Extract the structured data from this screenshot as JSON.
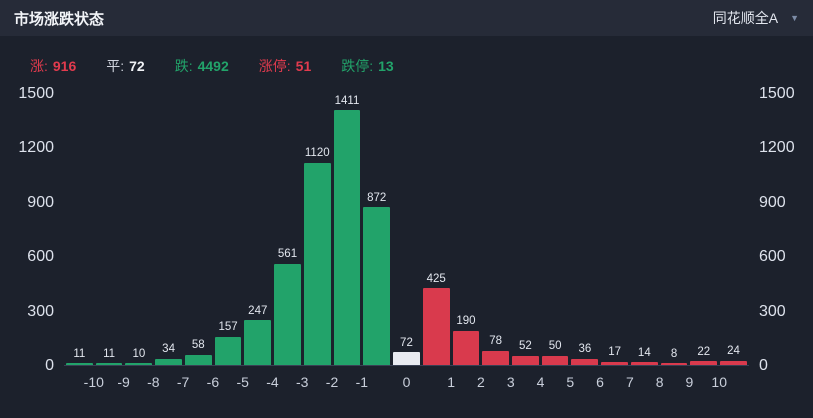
{
  "header": {
    "title": "市场涨跌状态",
    "index_selector_label": "同花顺全A"
  },
  "icons": {
    "dropdown_caret": "▼"
  },
  "colors": {
    "up": "#d93a4d",
    "down": "#22a36a",
    "flat": "#e9ebf1",
    "bg": "#1c212c",
    "header_bg": "#262b38"
  },
  "stats": [
    {
      "key": "up",
      "label": "涨:",
      "value": "916",
      "label_color": "#e23b4e",
      "value_color": "#e23b4e"
    },
    {
      "key": "flat",
      "label": "平:",
      "value": "72",
      "label_color": "#cfd3dd",
      "value_color": "#f0f2f6"
    },
    {
      "key": "down",
      "label": "跌:",
      "value": "4492",
      "label_color": "#22a36a",
      "value_color": "#22a36a"
    },
    {
      "key": "limit_up",
      "label": "涨停:",
      "value": "51",
      "label_color": "#e23b4e",
      "value_color": "#e23b4e"
    },
    {
      "key": "limit_down",
      "label": "跌停:",
      "value": "13",
      "label_color": "#22a36a",
      "value_color": "#22a36a"
    }
  ],
  "chart_data": {
    "type": "bar",
    "title": "市场涨跌状态",
    "xlabel": "",
    "ylabel": "",
    "ylim": [
      0,
      1500
    ],
    "grid": false,
    "legend_position": "none",
    "y_ticks": [
      "0",
      "300",
      "600",
      "900",
      "1200",
      "1500"
    ],
    "x_ticks": [
      "-10",
      "-9",
      "-8",
      "-7",
      "-6",
      "-5",
      "-4",
      "-3",
      "-2",
      "-1",
      "0",
      "1",
      "2",
      "3",
      "4",
      "5",
      "6",
      "7",
      "8",
      "9",
      "10"
    ],
    "bars": [
      {
        "value": 11,
        "type": "down"
      },
      {
        "value": 11,
        "type": "down"
      },
      {
        "value": 10,
        "type": "down"
      },
      {
        "value": 34,
        "type": "down"
      },
      {
        "value": 58,
        "type": "down"
      },
      {
        "value": 157,
        "type": "down"
      },
      {
        "value": 247,
        "type": "down"
      },
      {
        "value": 561,
        "type": "down"
      },
      {
        "value": 1120,
        "type": "down"
      },
      {
        "value": 1411,
        "type": "down"
      },
      {
        "value": 872,
        "type": "down"
      },
      {
        "value": 72,
        "type": "flat"
      },
      {
        "value": 425,
        "type": "up"
      },
      {
        "value": 190,
        "type": "up"
      },
      {
        "value": 78,
        "type": "up"
      },
      {
        "value": 52,
        "type": "up"
      },
      {
        "value": 50,
        "type": "up"
      },
      {
        "value": 36,
        "type": "up"
      },
      {
        "value": 17,
        "type": "up"
      },
      {
        "value": 14,
        "type": "up"
      },
      {
        "value": 8,
        "type": "up"
      },
      {
        "value": 22,
        "type": "up"
      },
      {
        "value": 24,
        "type": "up"
      }
    ]
  }
}
